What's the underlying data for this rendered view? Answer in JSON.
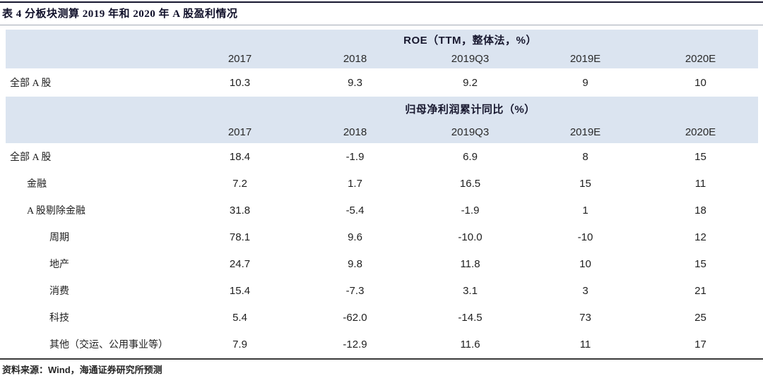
{
  "title": "表 4 分板块测算 2019 年和 2020 年 A 股盈利情况",
  "columns": [
    "2017",
    "2018",
    "2019Q3",
    "2019E",
    "2020E"
  ],
  "sections": [
    {
      "header": "ROE（TTM，整体法，%）",
      "rows": [
        {
          "label": "全部 A 股",
          "level": 0,
          "values": [
            "10.3",
            "9.3",
            "9.2",
            "9",
            "10"
          ]
        }
      ]
    },
    {
      "header": "归母净利润累计同比（%）",
      "rows": [
        {
          "label": "全部 A 股",
          "level": 0,
          "values": [
            "18.4",
            "-1.9",
            "6.9",
            "8",
            "15"
          ]
        },
        {
          "label": "金融",
          "level": 1,
          "values": [
            "7.2",
            "1.7",
            "16.5",
            "15",
            "11"
          ]
        },
        {
          "label": "A 股剔除金融",
          "level": 1,
          "values": [
            "31.8",
            "-5.4",
            "-1.9",
            "1",
            "18"
          ]
        },
        {
          "label": "周期",
          "level": 2,
          "values": [
            "78.1",
            "9.6",
            "-10.0",
            "-10",
            "12"
          ]
        },
        {
          "label": "地产",
          "level": 2,
          "values": [
            "24.7",
            "9.8",
            "11.8",
            "10",
            "15"
          ]
        },
        {
          "label": "消费",
          "level": 2,
          "values": [
            "15.4",
            "-7.3",
            "3.1",
            "3",
            "21"
          ]
        },
        {
          "label": "科技",
          "level": 2,
          "values": [
            "5.4",
            "-62.0",
            "-14.5",
            "73",
            "25"
          ]
        },
        {
          "label": "其他（交运、公用事业等）",
          "level": 2,
          "values": [
            "7.9",
            "-12.9",
            "11.6",
            "11",
            "17"
          ]
        }
      ]
    }
  ],
  "source": "资料来源：Wind，海通证券研究所预测",
  "colors": {
    "band": "#dbe4f0",
    "title_text": "#10102a",
    "body_text": "#1f1f1f",
    "top_border": "#15152e",
    "title_rule": "#a3aab6",
    "footer_rule": "#3a3a3a"
  },
  "chart_data": {
    "type": "table",
    "title": "表 4 分板块测算 2019 年和 2020 年 A 股盈利情况",
    "column_headers": [
      "",
      "2017",
      "2018",
      "2019Q3",
      "2019E",
      "2020E"
    ],
    "sections": [
      {
        "name": "ROE（TTM，整体法，%）",
        "rows": [
          [
            "全部 A 股",
            10.3,
            9.3,
            9.2,
            9,
            10
          ]
        ]
      },
      {
        "name": "归母净利润累计同比（%）",
        "rows": [
          [
            "全部 A 股",
            18.4,
            -1.9,
            6.9,
            8,
            15
          ],
          [
            "金融",
            7.2,
            1.7,
            16.5,
            15,
            11
          ],
          [
            "A 股剔除金融",
            31.8,
            -5.4,
            -1.9,
            1,
            18
          ],
          [
            "周期",
            78.1,
            9.6,
            -10.0,
            -10,
            12
          ],
          [
            "地产",
            24.7,
            9.8,
            11.8,
            10,
            15
          ],
          [
            "消费",
            15.4,
            -7.3,
            3.1,
            3,
            21
          ],
          [
            "科技",
            5.4,
            -62.0,
            -14.5,
            73,
            25
          ],
          [
            "其他（交运、公用事业等）",
            7.9,
            -12.9,
            11.6,
            11,
            17
          ]
        ]
      }
    ],
    "source": "资料来源：Wind，海通证券研究所预测"
  }
}
